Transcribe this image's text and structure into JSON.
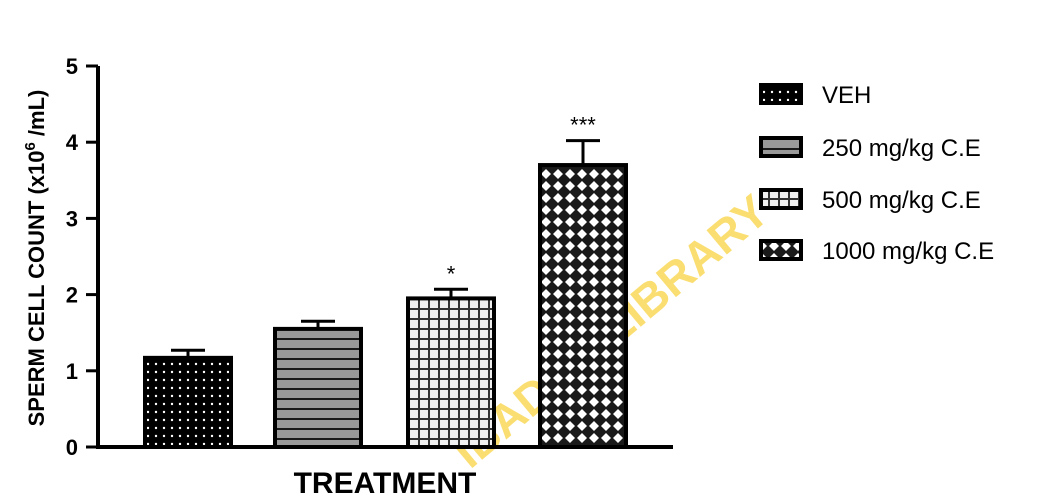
{
  "chart_data": {
    "type": "bar",
    "categories": [
      "VEH",
      "250 mg/kg C.E",
      "500 mg/kg C.E",
      "1000 mg/kg C.E"
    ],
    "values": [
      1.17,
      1.55,
      1.95,
      3.7
    ],
    "errors": [
      0.1,
      0.1,
      0.12,
      0.32
    ],
    "significance": [
      "",
      "",
      "*",
      "***"
    ],
    "ylim": [
      0,
      5
    ],
    "yticks": [
      "0",
      "1",
      "2",
      "3",
      "4",
      "5"
    ],
    "xlabel": "TREATMENT",
    "ylabel_main": "SPERM CELL COUNT (x10",
    "ylabel_sup": "6",
    "ylabel_tail": " /mL)",
    "legend_position": "right",
    "grid": false
  },
  "watermark": "IBADAN LIBRARY",
  "colors": {
    "axis": "#000000",
    "watermark": "#f6c400"
  }
}
